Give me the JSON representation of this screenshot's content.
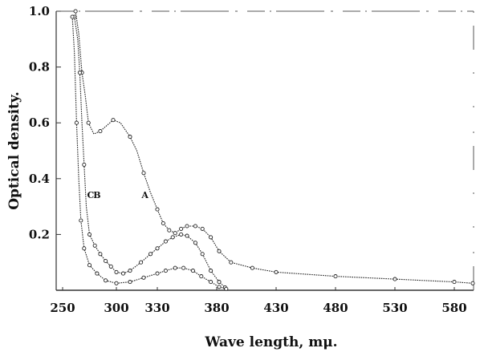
{
  "chart_data": {
    "type": "line",
    "title": "",
    "xlabel": "Wave length, mμ.",
    "ylabel": "Optical density.",
    "xlim": [
      250,
      610
    ],
    "ylim": [
      0,
      1.0
    ],
    "x_ticks": [
      250,
      300,
      330,
      380,
      430,
      480,
      530,
      580
    ],
    "x_tick_labels": [
      "250",
      "300",
      "330",
      "380",
      "430",
      "480",
      "530",
      "580"
    ],
    "y_ticks": [
      0.2,
      0.4,
      0.6,
      0.8,
      1.0
    ],
    "y_tick_labels": [
      "0.2",
      "0.4",
      "0.6",
      "0.8",
      "1.0"
    ],
    "grid": false,
    "legend": "none",
    "line_color": "#222222",
    "series": [
      {
        "name": "A",
        "marker": "circle-open",
        "label_at": [
          321,
          0.33
        ],
        "points": [
          [
            262,
            1.0
          ],
          [
            265,
            0.92
          ],
          [
            268,
            0.78
          ],
          [
            271,
            0.7
          ],
          [
            274,
            0.6
          ],
          [
            279,
            0.56
          ],
          [
            285,
            0.57
          ],
          [
            291,
            0.59
          ],
          [
            297,
            0.61
          ],
          [
            303,
            0.6
          ],
          [
            310,
            0.55
          ],
          [
            315,
            0.5
          ],
          [
            320,
            0.42
          ],
          [
            325,
            0.35
          ],
          [
            330,
            0.29
          ],
          [
            335,
            0.24
          ],
          [
            340,
            0.215
          ],
          [
            345,
            0.205
          ],
          [
            350,
            0.22
          ],
          [
            355,
            0.23
          ],
          [
            362,
            0.23
          ],
          [
            368,
            0.22
          ],
          [
            375,
            0.19
          ],
          [
            382,
            0.14
          ],
          [
            392,
            0.1
          ],
          [
            410,
            0.08
          ],
          [
            430,
            0.065
          ],
          [
            480,
            0.05
          ],
          [
            530,
            0.04
          ],
          [
            580,
            0.03
          ],
          [
            603,
            0.025
          ]
        ]
      },
      {
        "name": "B",
        "marker": "circle-open",
        "label_at": [
          282,
          0.33
        ],
        "points": [
          [
            261,
            0.98
          ],
          [
            264,
            0.9
          ],
          [
            266,
            0.78
          ],
          [
            268,
            0.6
          ],
          [
            270,
            0.45
          ],
          [
            272,
            0.3
          ],
          [
            275,
            0.2
          ],
          [
            280,
            0.16
          ],
          [
            285,
            0.13
          ],
          [
            290,
            0.105
          ],
          [
            295,
            0.085
          ],
          [
            300,
            0.065
          ],
          [
            305,
            0.06
          ],
          [
            310,
            0.07
          ],
          [
            318,
            0.1
          ],
          [
            325,
            0.13
          ],
          [
            330,
            0.15
          ],
          [
            337,
            0.175
          ],
          [
            343,
            0.19
          ],
          [
            350,
            0.2
          ],
          [
            355,
            0.195
          ],
          [
            362,
            0.17
          ],
          [
            368,
            0.13
          ],
          [
            375,
            0.07
          ],
          [
            382,
            0.03
          ],
          [
            387,
            0.01
          ]
        ]
      },
      {
        "name": "C",
        "marker": "circle-open",
        "label_at": [
          276,
          0.33
        ],
        "points": [
          [
            259,
            0.98
          ],
          [
            261,
            0.85
          ],
          [
            263,
            0.6
          ],
          [
            265,
            0.4
          ],
          [
            267,
            0.25
          ],
          [
            270,
            0.15
          ],
          [
            275,
            0.09
          ],
          [
            282,
            0.06
          ],
          [
            290,
            0.035
          ],
          [
            300,
            0.025
          ],
          [
            310,
            0.03
          ],
          [
            320,
            0.045
          ],
          [
            330,
            0.06
          ],
          [
            337,
            0.07
          ],
          [
            345,
            0.08
          ],
          [
            352,
            0.08
          ],
          [
            360,
            0.07
          ],
          [
            367,
            0.05
          ],
          [
            375,
            0.03
          ],
          [
            382,
            0.012
          ],
          [
            388,
            0.005
          ]
        ]
      }
    ]
  }
}
